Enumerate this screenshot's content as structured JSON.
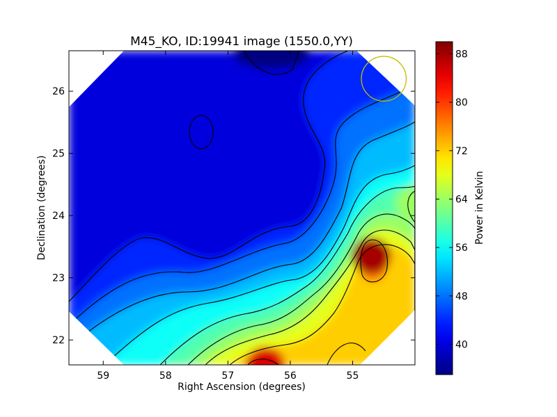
{
  "chart_data": {
    "type": "heatmap",
    "title": "M45_KO, ID:19941 image (1550.0,YY)",
    "xlabel": "Right Ascension (degrees)",
    "ylabel": "Declination (degrees)",
    "xlim": [
      59.55,
      54.0
    ],
    "ylim": [
      21.6,
      26.65
    ],
    "x_ticks": [
      59,
      58,
      57,
      56,
      55
    ],
    "x_tick_labels": [
      "59",
      "58",
      "57",
      "56",
      "55"
    ],
    "y_ticks": [
      22,
      23,
      24,
      25,
      26
    ],
    "y_tick_labels": [
      "22",
      "23",
      "24",
      "25",
      "26"
    ],
    "grid": false,
    "colormap": "jet",
    "colorbar": {
      "label": "Power in Kelvin",
      "range": [
        35,
        90
      ],
      "ticks": [
        40,
        48,
        56,
        64,
        72,
        80,
        88
      ],
      "tick_labels": [
        "40",
        "48",
        "56",
        "64",
        "72",
        "80",
        "88"
      ]
    },
    "field_features": [
      {
        "kind": "background",
        "value": 40
      },
      {
        "kind": "minimum",
        "ra": 56.3,
        "dec": 26.6,
        "value": 35
      },
      {
        "kind": "maximum",
        "ra": 54.7,
        "dec": 23.35,
        "value": 88
      },
      {
        "kind": "maximum",
        "ra": 56.4,
        "dec": 21.6,
        "value": 85
      },
      {
        "kind": "maximum",
        "ra": 54.0,
        "dec": 24.2,
        "value": 64
      }
    ],
    "contour_levels": [
      44,
      48,
      52,
      56,
      60,
      64,
      68,
      72,
      76,
      80,
      84,
      88
    ],
    "beam_circle": {
      "ra": 54.5,
      "dec": 26.2,
      "radius_deg": 0.36,
      "color": "#bfbf00"
    }
  }
}
